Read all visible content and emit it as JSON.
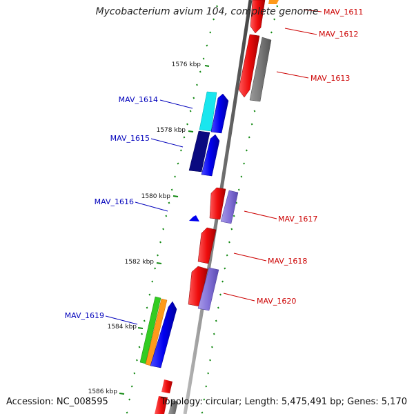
{
  "title": "Mycobacterium avium 104, complete genome",
  "footer": {
    "accession": "Accession: NC_008595",
    "summary": "Topology: circular; Length: 5,475,491 bp; Genes: 5,170"
  },
  "colors": {
    "forward_gene": "#ee1111",
    "reverse_gene": "#0000ee",
    "forward_label": "#cc0000",
    "reverse_label": "#0000bb",
    "ticks": "#118811",
    "backbone": "#777777"
  },
  "kbp_ticks": [
    {
      "label": "1576 kbp"
    },
    {
      "label": "1578 kbp"
    },
    {
      "label": "1580 kbp"
    },
    {
      "label": "1582 kbp"
    },
    {
      "label": "1584 kbp"
    },
    {
      "label": "1586 kbp"
    }
  ],
  "genes": [
    {
      "name": "MAV_1611",
      "strand": "forward"
    },
    {
      "name": "MAV_1612",
      "strand": "forward"
    },
    {
      "name": "MAV_1613",
      "strand": "forward"
    },
    {
      "name": "MAV_1614",
      "strand": "reverse"
    },
    {
      "name": "MAV_1615",
      "strand": "reverse"
    },
    {
      "name": "MAV_1616",
      "strand": "reverse"
    },
    {
      "name": "MAV_1617",
      "strand": "forward"
    },
    {
      "name": "MAV_1618",
      "strand": "forward"
    },
    {
      "name": "MAV_1619",
      "strand": "reverse"
    },
    {
      "name": "MAV_1620",
      "strand": "forward"
    }
  ]
}
